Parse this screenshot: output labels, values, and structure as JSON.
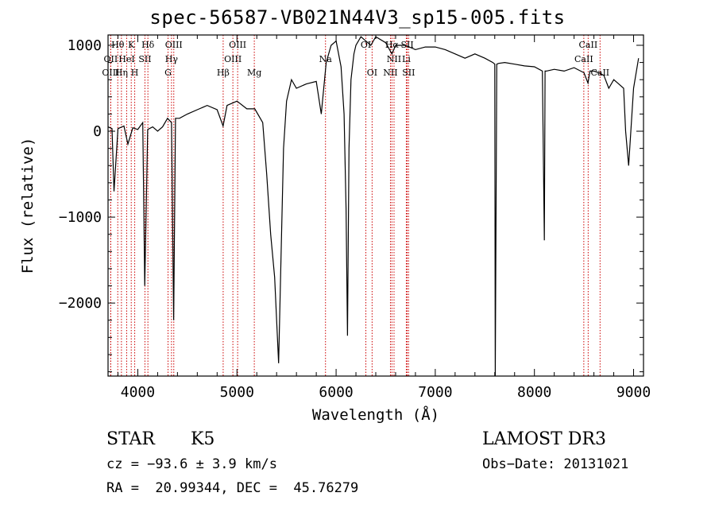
{
  "chart_data": {
    "type": "line",
    "title": "spec-56587-VB021N44V3_sp15-005.fits",
    "xlabel": "Wavelength (Å)",
    "ylabel": "Flux (relative)",
    "xlim": [
      3700,
      9100
    ],
    "ylim": [
      -2850,
      1120
    ],
    "xticks": [
      4000,
      5000,
      6000,
      7000,
      8000,
      9000
    ],
    "yticks": [
      -2000,
      -1000,
      0,
      1000
    ],
    "xtick_labels": [
      "4000",
      "5000",
      "6000",
      "7000",
      "8000",
      "9000"
    ],
    "ytick_labels": [
      "−2000",
      "−1000",
      "0",
      "1000"
    ],
    "grid": false,
    "line_color": "#000000",
    "marker_line_color": "#cc0000",
    "series": [
      {
        "x": [
          3700,
          3740,
          3760,
          3800,
          3860,
          3900,
          3950,
          4000,
          4050,
          4070,
          4100,
          4150,
          4200,
          4250,
          4300,
          4340,
          4362,
          4380,
          4420,
          4500,
          4600,
          4700,
          4800,
          4860,
          4900,
          5000,
          5100,
          5180,
          5260,
          5300,
          5340,
          5380,
          5420,
          5450,
          5470,
          5500,
          5550,
          5600,
          5700,
          5800,
          5850,
          5900,
          5950,
          6000,
          6050,
          6080,
          6100,
          6115,
          6130,
          6150,
          6180,
          6200,
          6250,
          6300,
          6350,
          6400,
          6500,
          6563,
          6600,
          6700,
          6800,
          6900,
          7000,
          7100,
          7200,
          7300,
          7400,
          7500,
          7580,
          7600,
          7605,
          7620,
          7640,
          7700,
          7800,
          7900,
          8000,
          8080,
          8100,
          8107,
          8120,
          8200,
          8300,
          8400,
          8500,
          8540,
          8560,
          8600,
          8650,
          8700,
          8750,
          8800,
          8850,
          8900,
          8920,
          8950,
          9000,
          9050
        ],
        "y": [
          50,
          30,
          -700,
          30,
          60,
          -150,
          40,
          20,
          100,
          -1800,
          20,
          50,
          0,
          50,
          150,
          100,
          -2200,
          150,
          150,
          200,
          250,
          300,
          250,
          60,
          300,
          350,
          260,
          260,
          100,
          -500,
          -1200,
          -1700,
          -2700,
          -1200,
          -200,
          350,
          600,
          500,
          550,
          580,
          200,
          800,
          1000,
          1050,
          750,
          200,
          -900,
          -2380,
          -200,
          600,
          900,
          1000,
          1100,
          1050,
          1000,
          1100,
          1030,
          900,
          1000,
          1000,
          950,
          980,
          980,
          950,
          900,
          850,
          900,
          850,
          800,
          780,
          -2850,
          780,
          790,
          800,
          780,
          760,
          750,
          700,
          -1270,
          700,
          700,
          720,
          700,
          740,
          680,
          560,
          700,
          700,
          680,
          650,
          500,
          600,
          550,
          500,
          0,
          -400,
          500,
          850
        ]
      }
    ],
    "line_markers": [
      {
        "label": "Hθ",
        "x": 3798,
        "row": 0
      },
      {
        "label": "OII",
        "x": 3727,
        "row": 1
      },
      {
        "label": "OIII",
        "x": 3727,
        "row": 2
      },
      {
        "label": "K",
        "x": 3934,
        "row": 0
      },
      {
        "label": "HeI",
        "x": 3888,
        "row": 1
      },
      {
        "label": "Hη",
        "x": 3835,
        "row": 2
      },
      {
        "label": "Hδ",
        "x": 4102,
        "row": 0
      },
      {
        "label": "SII",
        "x": 4072,
        "row": 1
      },
      {
        "label": "H",
        "x": 3969,
        "row": 2
      },
      {
        "label": "OIII",
        "x": 4363,
        "row": 0
      },
      {
        "label": "Hγ",
        "x": 4340,
        "row": 1
      },
      {
        "label": "G",
        "x": 4305,
        "row": 2
      },
      {
        "label": "OIII",
        "x": 5007,
        "row": 0
      },
      {
        "label": "OIII",
        "x": 4959,
        "row": 1
      },
      {
        "label": "Hβ",
        "x": 4861,
        "row": 2
      },
      {
        "label": "Mg",
        "x": 5175,
        "row": 2
      },
      {
        "label": "Na",
        "x": 5893,
        "row": 1
      },
      {
        "label": "OI",
        "x": 6300,
        "row": 0
      },
      {
        "label": "OI",
        "x": 6363,
        "row": 2
      },
      {
        "label": "Hα",
        "x": 6563,
        "row": 0
      },
      {
        "label": "SII",
        "x": 6717,
        "row": 0
      },
      {
        "label": "NII",
        "x": 6584,
        "row": 1
      },
      {
        "label": "Li",
        "x": 6708,
        "row": 1
      },
      {
        "label": "NII",
        "x": 6548,
        "row": 2
      },
      {
        "label": "SII",
        "x": 6731,
        "row": 2
      },
      {
        "label": "CaII",
        "x": 8542,
        "row": 0
      },
      {
        "label": "CaII",
        "x": 8498,
        "row": 1
      },
      {
        "label": "CaII",
        "x": 8662,
        "row": 2
      }
    ]
  },
  "info": {
    "object_type": "STAR",
    "subclass": "K5",
    "survey": "LAMOST DR3",
    "cz_line": "cz = −93.6 ± 3.9 km/s",
    "obs_date_line": "Obs−Date: 20131021",
    "radec_line": "RA =  20.99344, DEC =  45.76279"
  }
}
